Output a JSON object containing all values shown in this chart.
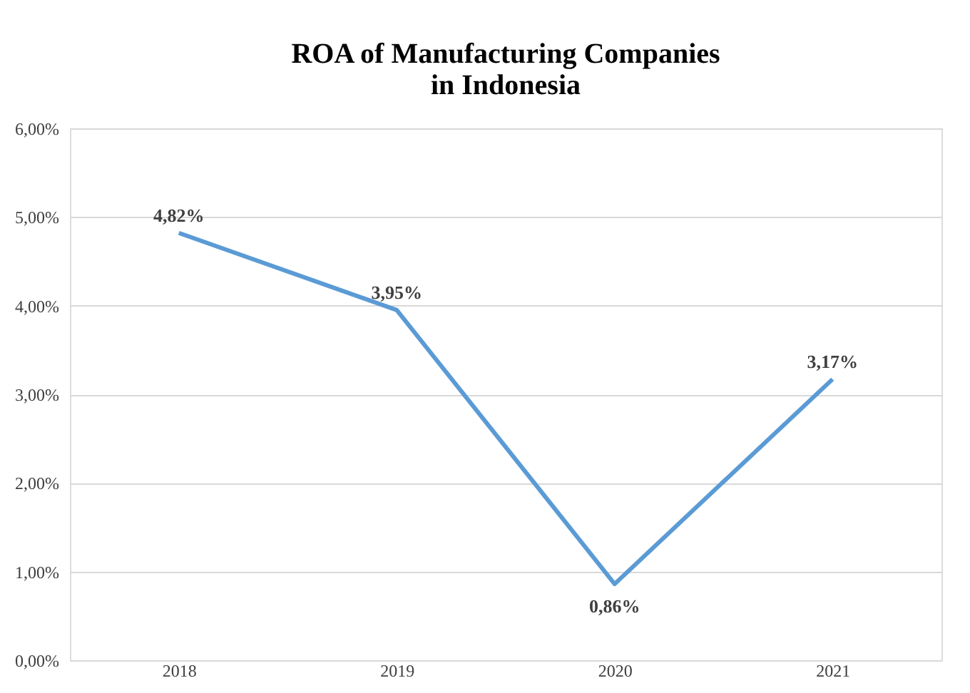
{
  "chart_data": {
    "type": "line",
    "title": "ROA of Manufacturing Companies\nin Indonesia",
    "categories": [
      "2018",
      "2019",
      "2020",
      "2021"
    ],
    "series": [
      {
        "color": "#5b9bd5",
        "values": [
          4.82,
          3.95,
          0.86,
          3.17
        ]
      }
    ],
    "value_labels": [
      "4,82%",
      "3,95%",
      "0,86%",
      "3,17%"
    ],
    "ylim": [
      0,
      6
    ],
    "yticks": [
      {
        "value": 0,
        "label": "0,00%"
      },
      {
        "value": 1,
        "label": "1,00%"
      },
      {
        "value": 2,
        "label": "2,00%"
      },
      {
        "value": 3,
        "label": "3,00%"
      },
      {
        "value": 4,
        "label": "4,00%"
      },
      {
        "value": 5,
        "label": "5,00%"
      },
      {
        "value": 6,
        "label": "6,00%"
      }
    ],
    "grid": "y",
    "marker": "none",
    "line_style": "solid"
  }
}
